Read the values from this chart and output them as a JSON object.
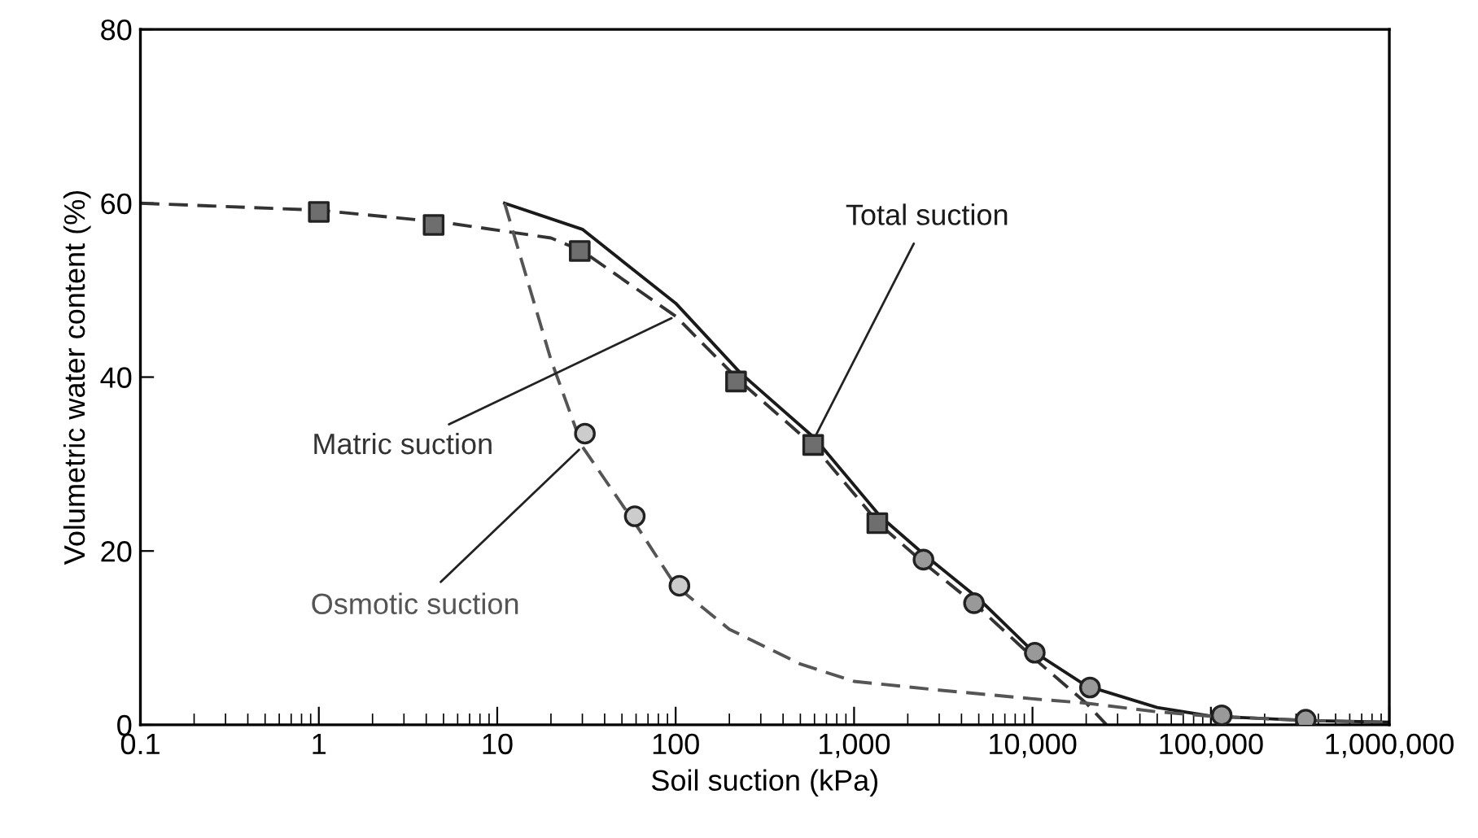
{
  "chart_data": {
    "type": "line",
    "xlabel": "Soil suction (kPa)",
    "ylabel": "Volumetric water content (%)",
    "log": "x",
    "xlim": [
      0.1,
      1000000
    ],
    "ylim": [
      0,
      80
    ],
    "xticks": [
      0.1,
      1,
      10,
      100,
      {
        "value": 1000,
        "label": "1,000"
      },
      {
        "value": 10000,
        "label": "10,000"
      },
      {
        "value": 100000,
        "label": "100,000"
      },
      {
        "value": 1000000,
        "label": "1,000,000"
      }
    ],
    "yticks": [
      0,
      20,
      40,
      60,
      80
    ],
    "grid": false,
    "series": [
      {
        "name": "Total suction",
        "color": "#1a1a1a",
        "line_style": "solid",
        "marker": "none",
        "x": [
          11,
          30,
          100,
          230,
          600,
          1400,
          2500,
          5000,
          10000,
          20000,
          50000,
          100000,
          350000,
          1000000
        ],
        "values": [
          60,
          57,
          48.5,
          40.5,
          33,
          24,
          19.5,
          14.5,
          8.5,
          4.5,
          2,
          1,
          0.5,
          0.3
        ]
      },
      {
        "name": "Matric suction",
        "color": "#333333",
        "line_style": "dashed",
        "marker": "none",
        "x": [
          0.1,
          1,
          5,
          20,
          30,
          100,
          230,
          600,
          1400,
          2500,
          5000,
          10000,
          20000,
          26000
        ],
        "values": [
          60,
          59.2,
          57.8,
          56,
          54.5,
          47,
          39.5,
          32,
          23,
          18.5,
          13.5,
          7.8,
          2.5,
          0
        ]
      },
      {
        "name": "Osmotic suction",
        "color": "#555555",
        "line_style": "dashed",
        "marker": "none",
        "x": [
          11,
          20,
          30,
          60,
          100,
          200,
          500,
          1000,
          3000,
          10000,
          20000,
          50000,
          100000,
          350000,
          1000000
        ],
        "values": [
          60,
          42,
          32,
          23,
          16,
          11,
          7,
          5,
          4,
          3,
          2.5,
          1.5,
          1,
          0.5,
          0.3
        ]
      },
      {
        "type": "scatter",
        "color": "#6e6e6e",
        "marker": "square",
        "x": [
          1,
          4.4,
          29,
          218,
          590,
          1350
        ],
        "values": [
          59,
          57.5,
          54.5,
          39.5,
          32.2,
          23.2
        ]
      },
      {
        "type": "scatter",
        "color": "#999999",
        "marker": "circle",
        "x": [
          2450,
          4700,
          10300,
          21000,
          115000,
          340000
        ],
        "values": [
          19,
          14,
          8.3,
          4.3,
          1.1,
          0.6
        ]
      },
      {
        "type": "scatter",
        "color": "#cccccc",
        "marker": "circle",
        "x": [
          31,
          59,
          105
        ],
        "values": [
          33.5,
          24,
          16
        ]
      }
    ]
  }
}
